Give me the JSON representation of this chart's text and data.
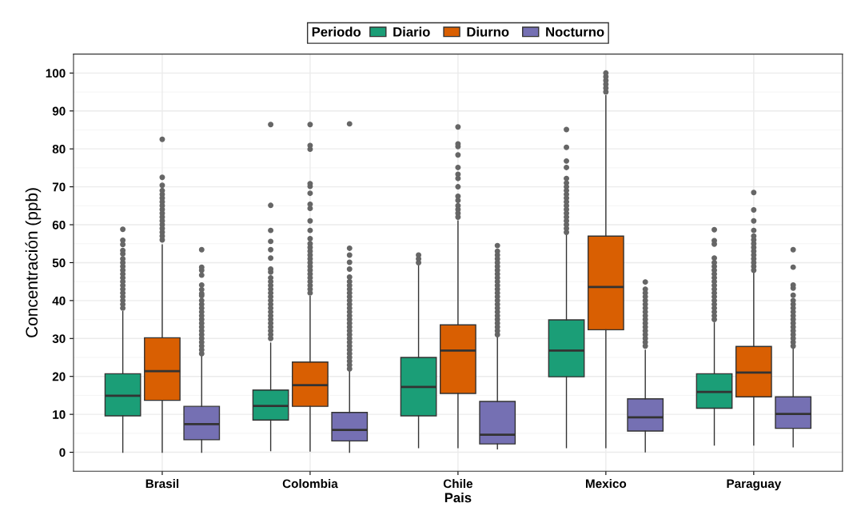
{
  "chart_data": {
    "type": "box",
    "xlabel": "Pais",
    "ylabel": "Concentración (ppb)",
    "legend_title": "Periodo",
    "legend": "top",
    "categories": [
      "Brasil",
      "Colombia",
      "Chile",
      "Mexico",
      "Paraguay"
    ],
    "ylim": [
      -5,
      105
    ],
    "yticks": [
      0,
      10,
      20,
      30,
      40,
      50,
      60,
      70,
      80,
      90,
      100
    ],
    "grid": true,
    "series": [
      {
        "name": "Diario",
        "color": "#1b9e77",
        "boxes": [
          {
            "low": 0,
            "q1": 9.6,
            "median": 14.9,
            "q3": 20.7,
            "high": 37.1,
            "outliers": [
              38,
              39,
              40,
              41,
              42,
              43,
              44,
              45,
              46,
              47,
              48,
              49,
              50,
              51,
              52.3,
              53.2,
              54.8,
              55.9,
              58.8
            ]
          },
          {
            "low": 0.4,
            "q1": 8.5,
            "median": 12.2,
            "q3": 16.4,
            "high": 28.8,
            "outliers": [
              30,
              31,
              32,
              33,
              34,
              35,
              36,
              37,
              38,
              39,
              40,
              41,
              42,
              43,
              44,
              45,
              46,
              47.5,
              48.3,
              51.2,
              53.4,
              55.6,
              58.5,
              65.1,
              86.4
            ]
          },
          {
            "low": 1.2,
            "q1": 9.6,
            "median": 17.2,
            "q3": 25.0,
            "high": 49.1,
            "outliers": [
              50,
              51,
              52
            ]
          },
          {
            "low": 1.2,
            "q1": 19.9,
            "median": 26.8,
            "q3": 34.9,
            "high": 57.5,
            "outliers": [
              58,
              59,
              60,
              61,
              62,
              63,
              64,
              65,
              66,
              67,
              68,
              69,
              70,
              71,
              72.2,
              75.1,
              76.8,
              80.4,
              85.1
            ]
          },
          {
            "low": 1.9,
            "q1": 11.6,
            "median": 15.9,
            "q3": 20.7,
            "high": 34.1,
            "outliers": [
              35,
              36,
              37,
              38,
              39,
              40,
              41,
              42,
              43,
              44,
              45,
              46,
              47,
              48,
              49,
              50,
              51.2,
              54.9,
              55.8,
              58.7
            ]
          }
        ]
      },
      {
        "name": "Diurno",
        "color": "#d95f02",
        "boxes": [
          {
            "low": 0,
            "q1": 13.7,
            "median": 21.4,
            "q3": 30.2,
            "high": 54.7,
            "outliers": [
              56,
              57,
              58,
              59,
              60,
              61,
              62,
              63,
              64,
              65,
              66,
              67,
              68,
              69,
              70.4,
              72.5,
              82.5
            ]
          },
          {
            "low": 0.3,
            "q1": 12.1,
            "median": 17.7,
            "q3": 23.8,
            "high": 41.1,
            "outliers": [
              42,
              43,
              44,
              45,
              46,
              47,
              48,
              49,
              50,
              51,
              52,
              53,
              54,
              55,
              56.3,
              58.5,
              61,
              64.3,
              65.4,
              68.3,
              70.1,
              70.8,
              79.9,
              80.9,
              86.4
            ]
          },
          {
            "low": 1.2,
            "q1": 15.5,
            "median": 26.8,
            "q3": 33.6,
            "high": 61,
            "outliers": [
              62,
              63,
              64,
              65,
              66.4,
              67.5,
              70,
              72.2,
              73.3,
              75.1,
              78.4,
              80.6,
              81.3,
              85.8
            ]
          },
          {
            "low": 1.2,
            "q1": 32.3,
            "median": 43.6,
            "q3": 57.0,
            "high": 94,
            "outliers": [
              95,
              96,
              97,
              98,
              99,
              100
            ]
          },
          {
            "low": 1.9,
            "q1": 14.6,
            "median": 21.0,
            "q3": 27.9,
            "high": 47.4,
            "outliers": [
              48,
              49,
              50,
              51,
              52,
              53,
              54,
              55,
              56,
              57,
              58.5,
              61,
              63.9,
              68.5
            ]
          }
        ]
      },
      {
        "name": "Nocturno",
        "color": "#7570b3",
        "boxes": [
          {
            "low": 0,
            "q1": 3.3,
            "median": 7.4,
            "q3": 12.1,
            "high": 25.5,
            "outliers": [
              26,
              27,
              28,
              29,
              30,
              31,
              32,
              33,
              34,
              35,
              36,
              37,
              38,
              39,
              40,
              41.3,
              41.8,
              42.9,
              44.1,
              46.7,
              48,
              48.8,
              53.4
            ]
          },
          {
            "low": 0,
            "q1": 3.0,
            "median": 5.9,
            "q3": 10.5,
            "high": 21.4,
            "outliers": [
              22,
              23,
              24,
              25,
              26,
              27,
              28,
              29,
              30,
              31,
              32,
              33,
              34,
              35,
              36,
              37,
              38,
              39,
              40,
              41,
              42,
              43,
              44,
              45,
              46.2,
              48.3,
              50.1,
              52,
              53.8,
              86.6
            ]
          },
          {
            "low": 0.9,
            "q1": 2.2,
            "median": 4.6,
            "q3": 13.4,
            "high": 30.4,
            "outliers": [
              31,
              32,
              33,
              34,
              35,
              36,
              37,
              38,
              39,
              40,
              41,
              42,
              43,
              44,
              45,
              46,
              47,
              48,
              49,
              50,
              51,
              52,
              53,
              54.5
            ]
          },
          {
            "low": 0.1,
            "q1": 5.6,
            "median": 9.2,
            "q3": 14.1,
            "high": 26.9,
            "outliers": [
              28,
              29,
              30,
              31,
              32,
              33,
              34,
              35,
              36,
              37,
              38,
              39,
              40,
              41,
              42,
              43,
              44.9
            ]
          },
          {
            "low": 1.4,
            "q1": 6.3,
            "median": 10.1,
            "q3": 14.6,
            "high": 27.3,
            "outliers": [
              28,
              29,
              30,
              31,
              32,
              33,
              34,
              35,
              36,
              37,
              38,
              39,
              40,
              41.4,
              43.3,
              44.1,
              48.8,
              53.4
            ]
          }
        ]
      }
    ]
  }
}
